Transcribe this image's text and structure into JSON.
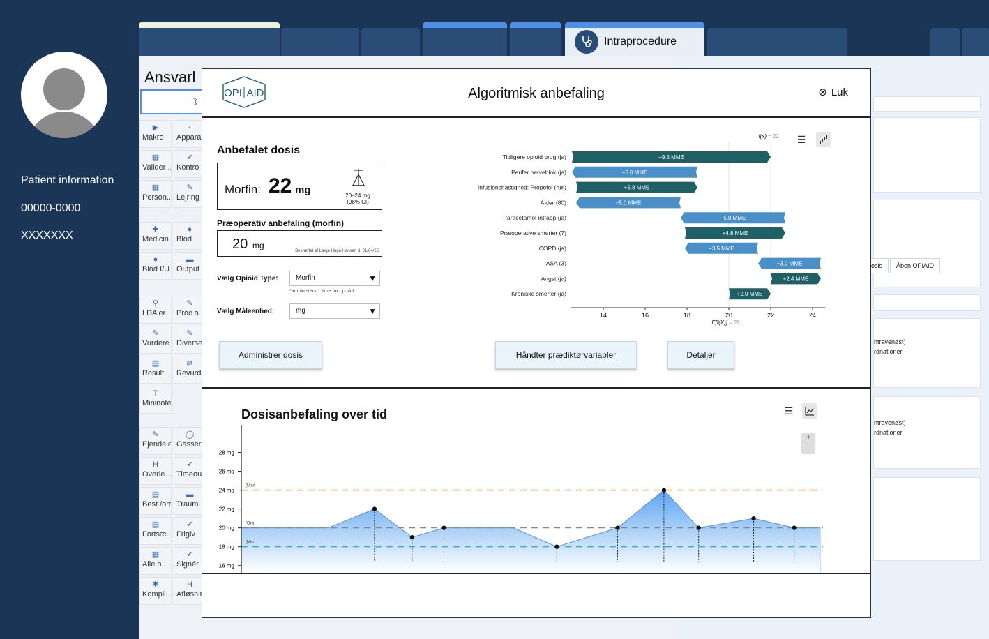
{
  "sidebar": {
    "patient_info": "Patient information",
    "patient_id": "00000-0000",
    "patient_name": "XXXXXXX"
  },
  "tabs": {
    "active_label": "Intraprocedure",
    "active_icon": "stethoscope-icon"
  },
  "background": {
    "title": "Ansvarl",
    "tools": [
      {
        "label": "Makro",
        "icon": "▶"
      },
      {
        "label": "Appara",
        "icon": "‹"
      },
      {
        "label": "Valider ...",
        "icon": "▦"
      },
      {
        "label": "Kontro",
        "icon": "✔"
      },
      {
        "label": "Person...",
        "icon": "▦"
      },
      {
        "label": "Lejring",
        "icon": "✎"
      },
      {
        "label": "Medicin",
        "icon": "✚"
      },
      {
        "label": "Blod",
        "icon": "●"
      },
      {
        "label": "Blod I/U",
        "icon": "●"
      },
      {
        "label": "Output",
        "icon": "▬"
      },
      {
        "label": "LDA'er",
        "icon": "⚲"
      },
      {
        "label": "Proc o...",
        "icon": "✎"
      },
      {
        "label": "Vurdere",
        "icon": "✎"
      },
      {
        "label": "Diverse",
        "icon": "✎"
      },
      {
        "label": "Result...",
        "icon": "▤"
      },
      {
        "label": "Revurd...",
        "icon": "⇄"
      },
      {
        "label": "Mininote",
        "icon": "T"
      },
      {
        "label": "Ejendele",
        "icon": "✎"
      },
      {
        "label": "Gasser",
        "icon": "◯"
      },
      {
        "label": "Overle...",
        "icon": "H"
      },
      {
        "label": "Timeout",
        "icon": "✔"
      },
      {
        "label": "Best./ord.",
        "icon": "▤"
      },
      {
        "label": "Traum...",
        "icon": "▬"
      },
      {
        "label": "Fortsæ...",
        "icon": "▤"
      },
      {
        "label": "Frigiv",
        "icon": "✔"
      },
      {
        "label": "Alle h...",
        "icon": "▦"
      },
      {
        "label": "Signér",
        "icon": "✔"
      },
      {
        "label": "Kompli...",
        "icon": "✱"
      },
      {
        "label": "Afløsning",
        "icon": "H"
      }
    ],
    "right_buttons": [
      "osis",
      "Åben OPIAID"
    ],
    "right_lines": [
      "ntravenøst)",
      "rdnationer"
    ]
  },
  "modal": {
    "logo_text_left": "OPI",
    "logo_text_right": "AID",
    "title": "Algoritmisk anbefaling",
    "close_label": "Luk",
    "recommended": {
      "heading": "Anbefalet dosis",
      "drug": "Morfin:",
      "value": "22",
      "unit": "mg",
      "range": "20–24 mg",
      "ci": "(98% CI)"
    },
    "preop": {
      "heading": "Præoperativ anbefaling (morfin)",
      "value": "20",
      "unit": "mg",
      "note": "Bekræftet af Læge Hugo Hansen d. 01/04/25"
    },
    "opioid_select": {
      "label": "Vælg Opioid Type:",
      "value": "Morfin",
      "note": "*administers 1 time før op slut"
    },
    "unit_select": {
      "label": "Vælg Måleenhed:",
      "value": "mg"
    },
    "buttons": {
      "administer": "Administrer dosis",
      "predictors": "Håndter prædiktørvariabler",
      "details": "Detaljer"
    },
    "time_title": "Dosisanbefaling over tid"
  },
  "chart_data": [
    {
      "type": "bar",
      "subtype": "waterfall",
      "top_label": "f(x)",
      "top_value": "= 22",
      "bottom_label": "E[f(X)]",
      "bottom_value": "= 20",
      "base": 20,
      "final": 22,
      "xlim": [
        12.5,
        25
      ],
      "xticks": [
        14,
        16,
        18,
        20,
        22,
        24
      ],
      "features": [
        {
          "name": "Tidligere opioid brug (ja)",
          "value": 9.5,
          "label": "+9.5 MME"
        },
        {
          "name": "Perifer nerveblok (ja)",
          "value": -6.0,
          "label": "−6.0 MME"
        },
        {
          "name": "Infusionshastighed: Propofol (høj)",
          "value": 5.8,
          "label": "+5.8 MME"
        },
        {
          "name": "Alder (80)",
          "value": -5.0,
          "label": "−5.0 MME"
        },
        {
          "name": "Paracetamol intraop (ja)",
          "value": -5.0,
          "label": "−5.0 MME"
        },
        {
          "name": "Præoperative smerter (7)",
          "value": 4.8,
          "label": "+4.8 MME"
        },
        {
          "name": "COPD (ja)",
          "value": -3.5,
          "label": "−3.5 MME"
        },
        {
          "name": "ASA (3)",
          "value": -3.0,
          "label": "−3.0 MME"
        },
        {
          "name": "Angst (ja)",
          "value": 2.4,
          "label": "+2.4 MME"
        },
        {
          "name": "Kroniske smerter (ja)",
          "value": 2.0,
          "label": "+2.0 MME"
        }
      ],
      "positive_color": "#1f5f66",
      "negative_color": "#4a8fc7"
    },
    {
      "type": "area",
      "ylim": [
        14.5,
        29
      ],
      "yticks": [
        16,
        18,
        20,
        22,
        24,
        26,
        28
      ],
      "ytick_suffix": " mg",
      "x_range": [
        0,
        100
      ],
      "points": [
        {
          "x": 0,
          "y": 20
        },
        {
          "x": 15,
          "y": 20
        },
        {
          "x": 23,
          "y": 22,
          "marker": true
        },
        {
          "x": 29.5,
          "y": 19,
          "marker": true
        },
        {
          "x": 35,
          "y": 20,
          "marker": true
        },
        {
          "x": 47,
          "y": 20
        },
        {
          "x": 54.5,
          "y": 18,
          "marker": true
        },
        {
          "x": 65,
          "y": 20,
          "marker": true
        },
        {
          "x": 73,
          "y": 24,
          "marker": true
        },
        {
          "x": 79,
          "y": 20,
          "marker": true
        },
        {
          "x": 88.5,
          "y": 21,
          "marker": true
        },
        {
          "x": 95.5,
          "y": 20,
          "marker": true
        },
        {
          "x": 100,
          "y": 20
        }
      ],
      "lines": [
        {
          "label": "(Max",
          "y": 24,
          "color": "#c8692a"
        },
        {
          "label": "(Org",
          "y": 20,
          "color": "#888888"
        },
        {
          "label": "(Min",
          "y": 18,
          "color": "#2bb7b0"
        }
      ]
    }
  ]
}
